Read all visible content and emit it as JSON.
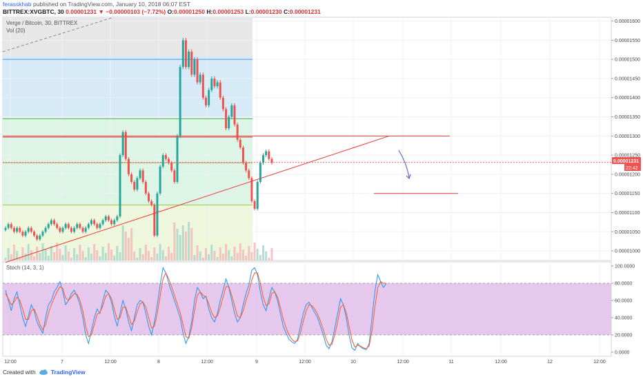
{
  "header": {
    "author": "ferasskhab",
    "published": "published on TradingView.com, January 10, 2018 06:07 EST",
    "symbol": "BITTREX:XVGBTC, 30",
    "last": "0.00001231",
    "change": "▼ −0.00000103 (−7.72%)",
    "o_label": "O:",
    "o": "0.00001250",
    "h_label": "H:",
    "h": "0.00001253",
    "l_label": "L:",
    "l": "0.00001230",
    "c_label": "C:",
    "c": "0.00001231"
  },
  "legend": {
    "pair": "Verge / Bitcoin, 30, BITTREX",
    "vol": "Vol (20)",
    "stoch": "Stoch (14, 3, 1)"
  },
  "price_badge": {
    "value": "0.00001231",
    "countdown": "22:42"
  },
  "footer": {
    "created": "Created with",
    "brand": "TradingView"
  },
  "colors": {
    "up": "#26a69a",
    "down": "#ef5350",
    "trend": "#e53935",
    "stochK": "#2196f3",
    "stochD": "#ff5722",
    "stochBand": "#e1bee7"
  },
  "chart_data": [
    {
      "type": "candlestick",
      "y_ticks": [
        "0.00001600",
        "0.00001550",
        "0.00001500",
        "0.00001450",
        "0.00001400",
        "0.00001350",
        "0.00001300",
        "0.00001250",
        "0.00001200",
        "0.00001150",
        "0.00001100",
        "0.00001050",
        "0.00001000"
      ],
      "x_ticks": [
        "12:00",
        "7",
        "12:00",
        "8",
        "12:00",
        "9",
        "12:00",
        "10",
        "12:00",
        "11",
        "12:00",
        "12",
        "12:00"
      ],
      "ylim": [
        9.75e-06,
        1.61e-05
      ],
      "close_series": [
        1.06e-05,
        1.07e-05,
        1.06e-05,
        1.05e-05,
        1.06e-05,
        1.05e-05,
        1.04e-05,
        1.05e-05,
        1.06e-05,
        1.05e-05,
        1.04e-05,
        1.03e-05,
        1.04e-05,
        1.05e-05,
        1.06e-05,
        1.07e-05,
        1.08e-05,
        1.07e-05,
        1.06e-05,
        1.05e-05,
        1.06e-05,
        1.07e-05,
        1.06e-05,
        1.05e-05,
        1.06e-05,
        1.07e-05,
        1.06e-05,
        1.05e-05,
        1.06e-05,
        1.07e-05,
        1.08e-05,
        1.07e-05,
        1.06e-05,
        1.07e-05,
        1.08e-05,
        1.09e-05,
        1.08e-05,
        1.07e-05,
        1.08e-05,
        1.09e-05,
        1.25e-05,
        1.31e-05,
        1.24e-05,
        1.2e-05,
        1.18e-05,
        1.16e-05,
        1.19e-05,
        1.21e-05,
        1.18e-05,
        1.15e-05,
        1.13e-05,
        1.12e-05,
        1.04e-05,
        1.15e-05,
        1.22e-05,
        1.25e-05,
        1.24e-05,
        1.23e-05,
        1.21e-05,
        1.18e-05,
        1.3e-05,
        1.48e-05,
        1.55e-05,
        1.48e-05,
        1.52e-05,
        1.46e-05,
        1.5e-05,
        1.44e-05,
        1.46e-05,
        1.4e-05,
        1.38e-05,
        1.42e-05,
        1.45e-05,
        1.43e-05,
        1.44e-05,
        1.4e-05,
        1.37e-05,
        1.32e-05,
        1.35e-05,
        1.38e-05,
        1.33e-05,
        1.29e-05,
        1.27e-05,
        1.23e-05,
        1.21e-05,
        1.19e-05,
        1.13e-05,
        1.11e-05,
        1.18e-05,
        1.23e-05,
        1.25e-05,
        1.26e-05,
        1.24e-05,
        1.23e-05
      ],
      "annotations": {
        "horizontal_levels": [
          1.5e-05,
          1.345e-05,
          1.297e-05,
          1.23e-05,
          1.12e-05
        ],
        "trendline_start": [
          0,
          9.7e-06
        ],
        "trendline_end": [
          134,
          1.3e-05
        ],
        "resistance": 1.3e-05,
        "support_short": 1.15e-05,
        "current_price": 1.231e-05
      }
    },
    {
      "type": "line",
      "title": "Stoch (14, 3, 1)",
      "y_ticks": [
        "100.0000",
        "80.0000",
        "60.0000",
        "40.0000",
        "20.0000",
        "0.0000"
      ],
      "ylim": [
        0,
        100
      ],
      "bands": [
        20,
        80
      ],
      "series": [
        {
          "values": [
            72,
            60,
            48,
            62,
            70,
            55,
            40,
            30,
            42,
            55,
            48,
            35,
            28,
            22,
            40,
            55,
            60,
            70,
            75,
            82,
            70,
            55,
            60,
            68,
            72,
            65,
            55,
            40,
            20,
            10,
            25,
            40,
            50,
            45,
            60,
            72,
            68,
            58,
            42,
            30,
            45,
            60,
            50,
            35,
            25,
            40,
            55,
            60,
            58,
            45,
            30,
            20,
            35,
            55,
            78,
            98,
            92,
            80,
            70,
            60,
            50,
            40,
            22,
            10,
            18,
            35,
            60,
            75,
            70,
            62,
            65,
            50,
            40,
            35,
            45,
            60,
            72,
            85,
            75,
            60,
            45,
            35,
            40,
            55,
            68,
            78,
            95,
            98,
            90,
            70,
            55,
            48,
            62,
            75,
            70,
            60,
            45,
            30,
            22,
            15,
            12,
            10,
            15,
            30,
            45,
            55,
            58,
            52,
            46,
            40,
            30,
            20,
            8,
            4,
            12,
            28,
            45,
            62,
            55,
            40,
            20,
            5,
            2,
            10,
            6,
            4,
            3,
            10,
            40,
            70,
            90,
            82,
            75,
            80
          ]
        },
        {
          "values": [
            68,
            62,
            55,
            58,
            64,
            60,
            50,
            38,
            38,
            48,
            50,
            42,
            32,
            26,
            32,
            45,
            55,
            63,
            70,
            76,
            74,
            63,
            60,
            64,
            68,
            67,
            60,
            48,
            30,
            18,
            20,
            32,
            44,
            46,
            54,
            65,
            68,
            62,
            50,
            38,
            40,
            52,
            52,
            42,
            32,
            36,
            47,
            56,
            58,
            52,
            40,
            28,
            30,
            45,
            65,
            85,
            92,
            85,
            76,
            66,
            56,
            46,
            32,
            18,
            16,
            28,
            48,
            66,
            70,
            66,
            64,
            56,
            46,
            40,
            42,
            52,
            64,
            76,
            76,
            66,
            54,
            42,
            40,
            48,
            60,
            70,
            84,
            92,
            92,
            80,
            64,
            54,
            56,
            68,
            70,
            64,
            52,
            38,
            28,
            20,
            15,
            12,
            13,
            22,
            36,
            48,
            55,
            54,
            50,
            44,
            36,
            26,
            15,
            8,
            9,
            20,
            35,
            52,
            55,
            46,
            30,
            14,
            6,
            8,
            7,
            5,
            4,
            7,
            25,
            52,
            75,
            82,
            80,
            80
          ]
        }
      ]
    }
  ]
}
